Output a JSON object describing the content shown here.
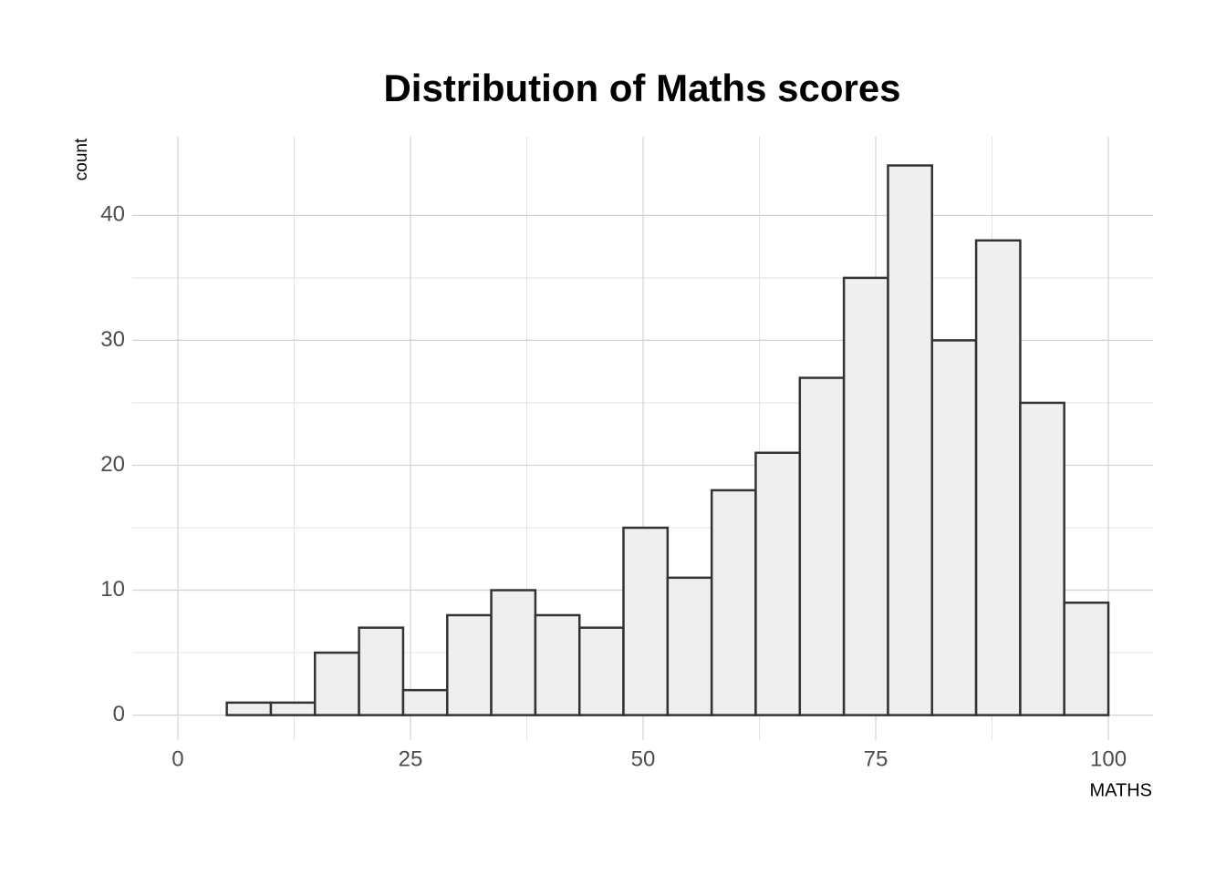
{
  "chart_data": {
    "type": "histogram",
    "title": "Distribution of Maths scores",
    "x_label": "MATHS",
    "y_label": "count",
    "bins": [
      5.26,
      10.0,
      14.73,
      19.47,
      24.21,
      28.95,
      33.68,
      38.42,
      43.16,
      47.89,
      52.63,
      57.37,
      62.1,
      66.84,
      71.58,
      76.32,
      81.05,
      85.79,
      90.53,
      95.26,
      100
    ],
    "values": [
      1,
      1,
      5,
      7,
      2,
      8,
      10,
      8,
      7,
      15,
      11,
      18,
      21,
      27,
      35,
      44,
      30,
      38,
      25,
      9
    ],
    "color": "#efefef",
    "edge_color": "#333333",
    "xlim": [
      -4.9,
      104.8
    ],
    "ylim": [
      -2,
      46.3
    ],
    "xticks": [
      0,
      25,
      50,
      75,
      100
    ],
    "yticks": [
      0,
      10,
      20,
      30,
      40
    ],
    "grid": true
  }
}
